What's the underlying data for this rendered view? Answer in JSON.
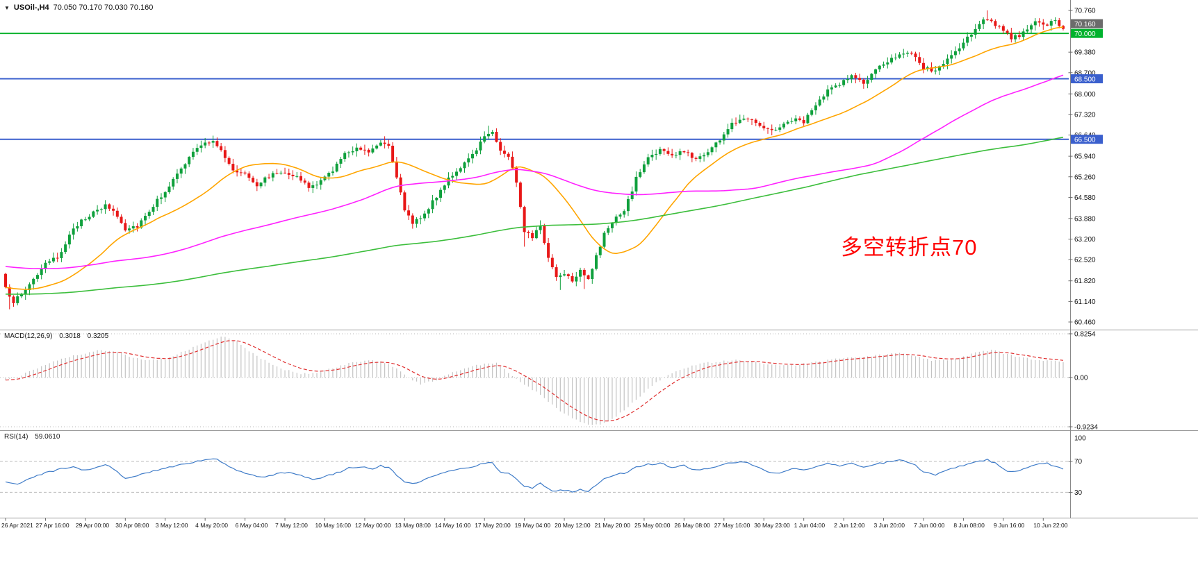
{
  "window": {
    "dropdown_icon": "▼",
    "symbol_title": "USOil-,H4",
    "ohlc_line": "70.050 70.170 70.030 70.160"
  },
  "indicators": {
    "macd": {
      "label": "MACD(12,26,9)",
      "macd_value": "0.3018",
      "signal_value": "0.3205"
    },
    "rsi": {
      "label": "RSI(14)",
      "value": "59.0610"
    }
  },
  "annotation": {
    "text": "多空转折点70",
    "color": "#FF0000"
  },
  "chart_data": {
    "type": "candlestick",
    "symbol": "USOil-",
    "timeframe": "H4",
    "title": "USOil-,H4 70.050 70.170 70.030 70.160",
    "num_candles": 266,
    "candles_per_label": 10,
    "seed": 987654321,
    "noise": 0.14,
    "wick": 0.16,
    "first_open": 62.05,
    "price_axis": {
      "top_price": 70.76,
      "bottom_price": 60.46,
      "ticks": [
        "70.760",
        "69.380",
        "68.700",
        "68.000",
        "67.320",
        "66.640",
        "65.940",
        "65.260",
        "64.580",
        "63.880",
        "63.200",
        "62.520",
        "61.820",
        "61.140",
        "60.460"
      ]
    },
    "current_price": 70.16,
    "current_price_label": "70.160",
    "hlines": [
      {
        "price": 70.0,
        "label": "70.000",
        "color": "#00B22D"
      },
      {
        "price": 68.5,
        "label": "68.500",
        "color": "#3A5FCD"
      },
      {
        "price": 66.5,
        "label": "66.500",
        "color": "#3A5FCD"
      }
    ],
    "moving_averages": [
      {
        "period": 24,
        "color": "#FFA500",
        "seed_price": 61.6
      },
      {
        "period": 90,
        "color": "#FF22FF",
        "seed_price": 62.3
      },
      {
        "period": 200,
        "color": "#3CBE3C",
        "seed_price": 61.38
      }
    ],
    "colors": {
      "bull": "#0FA03C",
      "bear": "#E81717",
      "macd_hist": "#C3C3C3",
      "macd_signal": "#E03030",
      "rsi_line": "#3E7BC8",
      "grid": "#B9B9B9"
    },
    "close_waypoints": [
      [
        0,
        61.55
      ],
      [
        2,
        61.15
      ],
      [
        4,
        61.35
      ],
      [
        7,
        61.9
      ],
      [
        10,
        62.35
      ],
      [
        13,
        62.6
      ],
      [
        16,
        63.3
      ],
      [
        19,
        63.85
      ],
      [
        22,
        64.05
      ],
      [
        25,
        64.3
      ],
      [
        27,
        64.15
      ],
      [
        30,
        63.55
      ],
      [
        33,
        63.65
      ],
      [
        36,
        64.15
      ],
      [
        40,
        64.8
      ],
      [
        44,
        65.5
      ],
      [
        47,
        66.1
      ],
      [
        50,
        66.35
      ],
      [
        52,
        66.5
      ],
      [
        54,
        66.1
      ],
      [
        57,
        65.45
      ],
      [
        60,
        65.4
      ],
      [
        63,
        65.0
      ],
      [
        66,
        65.3
      ],
      [
        70,
        65.45
      ],
      [
        73,
        65.25
      ],
      [
        76,
        64.9
      ],
      [
        79,
        65.1
      ],
      [
        82,
        65.5
      ],
      [
        85,
        66.0
      ],
      [
        88,
        66.25
      ],
      [
        91,
        66.1
      ],
      [
        94,
        66.45
      ],
      [
        96,
        66.3
      ],
      [
        98,
        65.3
      ],
      [
        100,
        64.1
      ],
      [
        102,
        63.75
      ],
      [
        105,
        64.05
      ],
      [
        108,
        64.6
      ],
      [
        111,
        65.25
      ],
      [
        114,
        65.5
      ],
      [
        117,
        66.0
      ],
      [
        120,
        66.6
      ],
      [
        122,
        66.8
      ],
      [
        124,
        66.1
      ],
      [
        126,
        65.95
      ],
      [
        128,
        65.1
      ],
      [
        130,
        63.5
      ],
      [
        132,
        63.3
      ],
      [
        134,
        63.6
      ],
      [
        136,
        62.6
      ],
      [
        138,
        61.95
      ],
      [
        140,
        62.1
      ],
      [
        142,
        61.85
      ],
      [
        144,
        62.2
      ],
      [
        146,
        61.9
      ],
      [
        148,
        62.6
      ],
      [
        150,
        63.35
      ],
      [
        152,
        63.8
      ],
      [
        155,
        64.1
      ],
      [
        158,
        65.2
      ],
      [
        161,
        65.9
      ],
      [
        164,
        66.15
      ],
      [
        167,
        65.95
      ],
      [
        170,
        66.1
      ],
      [
        173,
        65.85
      ],
      [
        176,
        66.1
      ],
      [
        179,
        66.5
      ],
      [
        182,
        67.0
      ],
      [
        185,
        67.25
      ],
      [
        188,
        67.1
      ],
      [
        191,
        66.8
      ],
      [
        194,
        66.9
      ],
      [
        197,
        67.15
      ],
      [
        200,
        67.1
      ],
      [
        203,
        67.6
      ],
      [
        206,
        68.1
      ],
      [
        209,
        68.35
      ],
      [
        212,
        68.6
      ],
      [
        215,
        68.35
      ],
      [
        218,
        68.75
      ],
      [
        221,
        69.1
      ],
      [
        224,
        69.35
      ],
      [
        227,
        69.3
      ],
      [
        230,
        68.85
      ],
      [
        233,
        68.75
      ],
      [
        236,
        69.15
      ],
      [
        239,
        69.5
      ],
      [
        242,
        70.0
      ],
      [
        244,
        70.35
      ],
      [
        246,
        70.5
      ],
      [
        248,
        70.3
      ],
      [
        250,
        70.05
      ],
      [
        252,
        69.85
      ],
      [
        255,
        70.0
      ],
      [
        258,
        70.35
      ],
      [
        261,
        70.3
      ],
      [
        263,
        70.4
      ],
      [
        265,
        70.16
      ]
    ],
    "extremes": [
      {
        "i": 1,
        "low": 60.88
      },
      {
        "i": 52,
        "high": 66.62
      },
      {
        "i": 95,
        "high": 66.6
      },
      {
        "i": 121,
        "high": 66.95
      },
      {
        "i": 130,
        "low": 62.95
      },
      {
        "i": 139,
        "low": 61.52
      },
      {
        "i": 145,
        "low": 61.55
      },
      {
        "i": 246,
        "high": 70.76
      },
      {
        "i": 252,
        "low": 69.7
      }
    ],
    "macd": {
      "signal_period": 9,
      "axis_max": 0.8254,
      "axis_min": -0.9234,
      "axis_labels": [
        "0.8254",
        "0.00",
        "-0.9234"
      ],
      "current": 0.3018,
      "signal_current": 0.3205,
      "waypoints": [
        [
          0,
          -0.06
        ],
        [
          4,
          0.05
        ],
        [
          8,
          0.18
        ],
        [
          12,
          0.3
        ],
        [
          16,
          0.4
        ],
        [
          20,
          0.46
        ],
        [
          24,
          0.52
        ],
        [
          28,
          0.48
        ],
        [
          32,
          0.38
        ],
        [
          36,
          0.33
        ],
        [
          40,
          0.35
        ],
        [
          44,
          0.48
        ],
        [
          48,
          0.6
        ],
        [
          52,
          0.72
        ],
        [
          55,
          0.78
        ],
        [
          58,
          0.68
        ],
        [
          62,
          0.45
        ],
        [
          66,
          0.28
        ],
        [
          70,
          0.15
        ],
        [
          74,
          0.07
        ],
        [
          78,
          0.1
        ],
        [
          82,
          0.18
        ],
        [
          86,
          0.27
        ],
        [
          90,
          0.32
        ],
        [
          94,
          0.31
        ],
        [
          98,
          0.18
        ],
        [
          101,
          0.0
        ],
        [
          104,
          -0.12
        ],
        [
          108,
          -0.04
        ],
        [
          112,
          0.1
        ],
        [
          116,
          0.2
        ],
        [
          120,
          0.26
        ],
        [
          123,
          0.27
        ],
        [
          126,
          0.1
        ],
        [
          129,
          -0.08
        ],
        [
          132,
          -0.22
        ],
        [
          135,
          -0.38
        ],
        [
          138,
          -0.58
        ],
        [
          141,
          -0.72
        ],
        [
          144,
          -0.84
        ],
        [
          147,
          -0.9
        ],
        [
          150,
          -0.86
        ],
        [
          153,
          -0.72
        ],
        [
          156,
          -0.55
        ],
        [
          159,
          -0.35
        ],
        [
          162,
          -0.15
        ],
        [
          165,
          0.0
        ],
        [
          168,
          0.12
        ],
        [
          171,
          0.2
        ],
        [
          174,
          0.26
        ],
        [
          177,
          0.29
        ],
        [
          180,
          0.31
        ],
        [
          184,
          0.33
        ],
        [
          188,
          0.3
        ],
        [
          192,
          0.24
        ],
        [
          196,
          0.23
        ],
        [
          200,
          0.26
        ],
        [
          204,
          0.3
        ],
        [
          208,
          0.35
        ],
        [
          212,
          0.38
        ],
        [
          216,
          0.4
        ],
        [
          220,
          0.43
        ],
        [
          224,
          0.46
        ],
        [
          228,
          0.4
        ],
        [
          232,
          0.32
        ],
        [
          236,
          0.33
        ],
        [
          240,
          0.4
        ],
        [
          244,
          0.49
        ],
        [
          247,
          0.52
        ],
        [
          250,
          0.46
        ],
        [
          253,
          0.4
        ],
        [
          256,
          0.36
        ],
        [
          259,
          0.33
        ],
        [
          262,
          0.31
        ],
        [
          265,
          0.3018
        ]
      ]
    },
    "rsi": {
      "levels": [
        70,
        30
      ],
      "axis_labels": [
        "100",
        "70",
        "30"
      ],
      "current": 59.061,
      "waypoints": [
        [
          0,
          44
        ],
        [
          3,
          40
        ],
        [
          6,
          48
        ],
        [
          10,
          55
        ],
        [
          14,
          60
        ],
        [
          17,
          63
        ],
        [
          20,
          58
        ],
        [
          23,
          63
        ],
        [
          25,
          66
        ],
        [
          28,
          56
        ],
        [
          30,
          48
        ],
        [
          33,
          51
        ],
        [
          36,
          56
        ],
        [
          40,
          61
        ],
        [
          44,
          66
        ],
        [
          48,
          70
        ],
        [
          51,
          72
        ],
        [
          53,
          73
        ],
        [
          56,
          62
        ],
        [
          59,
          57
        ],
        [
          62,
          52
        ],
        [
          65,
          50
        ],
        [
          68,
          54
        ],
        [
          71,
          56
        ],
        [
          74,
          51
        ],
        [
          77,
          46
        ],
        [
          80,
          50
        ],
        [
          83,
          55
        ],
        [
          86,
          61
        ],
        [
          89,
          63
        ],
        [
          92,
          60
        ],
        [
          94,
          64
        ],
        [
          96,
          62
        ],
        [
          98,
          52
        ],
        [
          100,
          44
        ],
        [
          102,
          41
        ],
        [
          105,
          46
        ],
        [
          108,
          52
        ],
        [
          111,
          58
        ],
        [
          114,
          60
        ],
        [
          117,
          63
        ],
        [
          120,
          67
        ],
        [
          122,
          68
        ],
        [
          124,
          56
        ],
        [
          126,
          54
        ],
        [
          128,
          47
        ],
        [
          130,
          37
        ],
        [
          132,
          36
        ],
        [
          134,
          41
        ],
        [
          136,
          34
        ],
        [
          138,
          31
        ],
        [
          140,
          33
        ],
        [
          142,
          30
        ],
        [
          144,
          34
        ],
        [
          146,
          30
        ],
        [
          148,
          40
        ],
        [
          150,
          47
        ],
        [
          152,
          52
        ],
        [
          155,
          55
        ],
        [
          158,
          62
        ],
        [
          161,
          66
        ],
        [
          164,
          67
        ],
        [
          167,
          62
        ],
        [
          170,
          64
        ],
        [
          173,
          58
        ],
        [
          176,
          61
        ],
        [
          179,
          65
        ],
        [
          182,
          68
        ],
        [
          185,
          69
        ],
        [
          188,
          64
        ],
        [
          191,
          56
        ],
        [
          194,
          55
        ],
        [
          197,
          61
        ],
        [
          200,
          58
        ],
        [
          203,
          63
        ],
        [
          206,
          67
        ],
        [
          209,
          64
        ],
        [
          212,
          67
        ],
        [
          215,
          63
        ],
        [
          218,
          66
        ],
        [
          221,
          69
        ],
        [
          224,
          71
        ],
        [
          227,
          68
        ],
        [
          230,
          56
        ],
        [
          233,
          52
        ],
        [
          236,
          59
        ],
        [
          239,
          63
        ],
        [
          242,
          67
        ],
        [
          244,
          70
        ],
        [
          246,
          72
        ],
        [
          248,
          67
        ],
        [
          250,
          60
        ],
        [
          252,
          56
        ],
        [
          255,
          60
        ],
        [
          258,
          65
        ],
        [
          261,
          68
        ],
        [
          263,
          63
        ],
        [
          265,
          59.1
        ]
      ]
    },
    "x_labels": [
      "26 Apr 2021",
      "27 Apr 16:00",
      "29 Apr 00:00",
      "30 Apr 08:00",
      "3 May 12:00",
      "4 May 20:00",
      "6 May 04:00",
      "7 May 12:00",
      "10 May 16:00",
      "12 May 00:00",
      "13 May 08:00",
      "14 May 16:00",
      "17 May 20:00",
      "19 May 04:00",
      "20 May 12:00",
      "21 May 20:00",
      "25 May 00:00",
      "26 May 08:00",
      "27 May 16:00",
      "30 May 23:00",
      "1 Jun 04:00",
      "2 Jun 12:00",
      "3 Jun 20:00",
      "7 Jun 00:00",
      "8 Jun 08:00",
      "9 Jun 16:00",
      "10 Jun 22:00"
    ]
  }
}
